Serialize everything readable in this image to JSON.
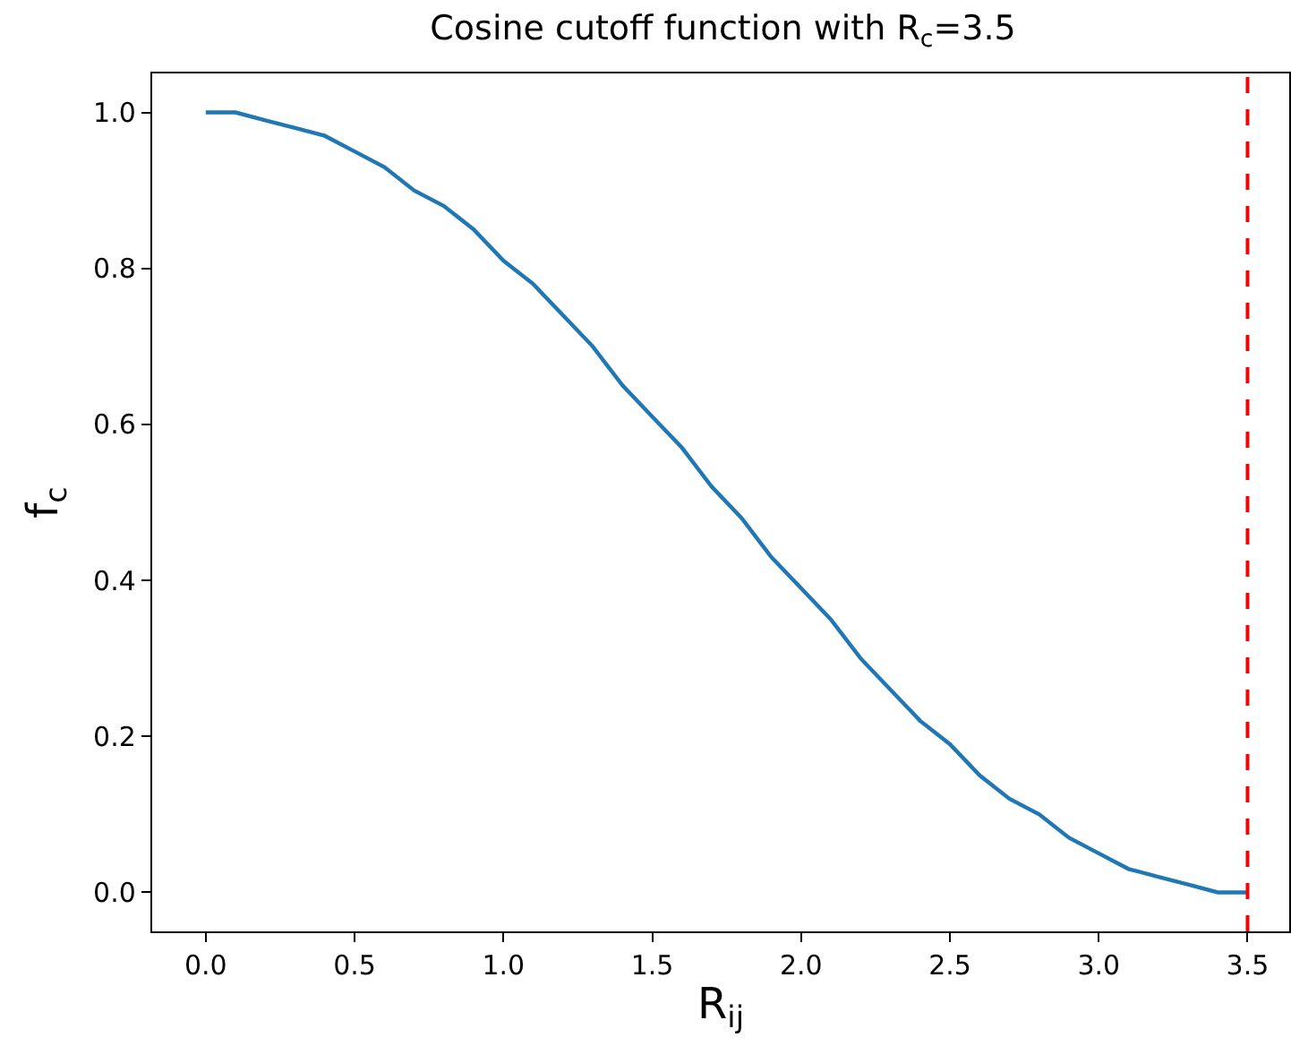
{
  "chart_data": {
    "type": "line",
    "title": "Cosine cutoff function with R$_{c}$=3.5",
    "xlabel": "R$_{ij}$",
    "ylabel": "f$_{c}$",
    "x": [
      0,
      0.1,
      0.2,
      0.3,
      0.4,
      0.5,
      0.6,
      0.7,
      0.8,
      0.9,
      1.0,
      1.1,
      1.2,
      1.3,
      1.4,
      1.5,
      1.6,
      1.7,
      1.8,
      1.9,
      2.0,
      2.1,
      2.2,
      2.3,
      2.4,
      2.5,
      2.6,
      2.7,
      2.8,
      2.9,
      3.0,
      3.1,
      3.2,
      3.3,
      3.4,
      3.5
    ],
    "series": [
      {
        "color": "#1f77b4",
        "values": [
          1.0,
          1.0,
          0.99,
          0.98,
          0.97,
          0.95,
          0.93,
          0.9,
          0.88,
          0.85,
          0.81,
          0.78,
          0.74,
          0.7,
          0.65,
          0.61,
          0.57,
          0.52,
          0.48,
          0.43,
          0.39,
          0.35,
          0.3,
          0.26,
          0.22,
          0.19,
          0.15,
          0.12,
          0.1,
          0.07,
          0.05,
          0.03,
          0.02,
          0.01,
          0.0,
          0.0
        ]
      }
    ],
    "xlim": [
      -0.18,
      3.64
    ],
    "ylim": [
      -0.05,
      1.05
    ],
    "xticks": [
      {
        "value": 0,
        "label": "0.0"
      },
      0.5,
      {
        "value": 1,
        "label": "1.0"
      },
      1.5,
      {
        "value": 2,
        "label": "2.0"
      },
      2.5,
      {
        "value": 3,
        "label": "3.0"
      },
      3.5
    ],
    "yticks": [
      {
        "value": 0,
        "label": "0.0"
      },
      0.2,
      0.4,
      0.6,
      0.8,
      {
        "value": 1,
        "label": "1.0"
      }
    ],
    "ref_lines": [
      {
        "axis": "x",
        "value": 3.5,
        "color": "#ff0000",
        "line_style": "dashed"
      }
    ],
    "marker": "none",
    "line_style": "solid"
  }
}
